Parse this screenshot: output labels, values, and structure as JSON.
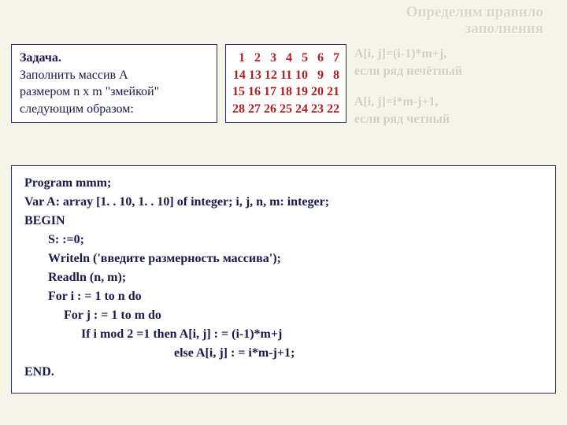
{
  "title": {
    "line1": "Определим правило",
    "line2": "заполнения"
  },
  "task": {
    "header": "Задача.",
    "body1": "Заполнить массив A",
    "body2": "размером n x m \"змейкой\"",
    "body3": "следующим образом:"
  },
  "matrix": {
    "rows": [
      "  1   2   3   4   5   6   7",
      "14 13 12 11 10   9   8",
      "15 16 17 18 19 20 21",
      "28 27 26 25 24 23 22"
    ]
  },
  "rules": {
    "r1a": "A[i, j]=(i-1)*m+j,",
    "r1b": "если ряд нечётный",
    "r2a": "A[i, j]=i*m-j+1,",
    "r2b": "если ряд четный"
  },
  "code": {
    "l1": "Program mmm;",
    "l2": "Var A: array [1. . 10, 1. . 10] of integer;    i, j, n, m: integer;",
    "l3": "BEGIN",
    "l4": "S: :=0;",
    "l5": "Writeln ('введите размерность массива');",
    "l6": "Readln (n, m);",
    "l7": "For i : = 1 to n do",
    "l8": "For j : = 1 to m do",
    "l9": "If  i mod 2 =1   then   A[i, j] : = (i-1)*m+j",
    "l10": "else    A[i, j] : = i*m-j+1;",
    "l11": "END."
  },
  "colors": {
    "background": "#f5f4e8",
    "box_border": "#2a2a6a",
    "text_dark": "#1a1a4a",
    "matrix_text": "#b02020",
    "faded_text": "#d0cfbf"
  }
}
